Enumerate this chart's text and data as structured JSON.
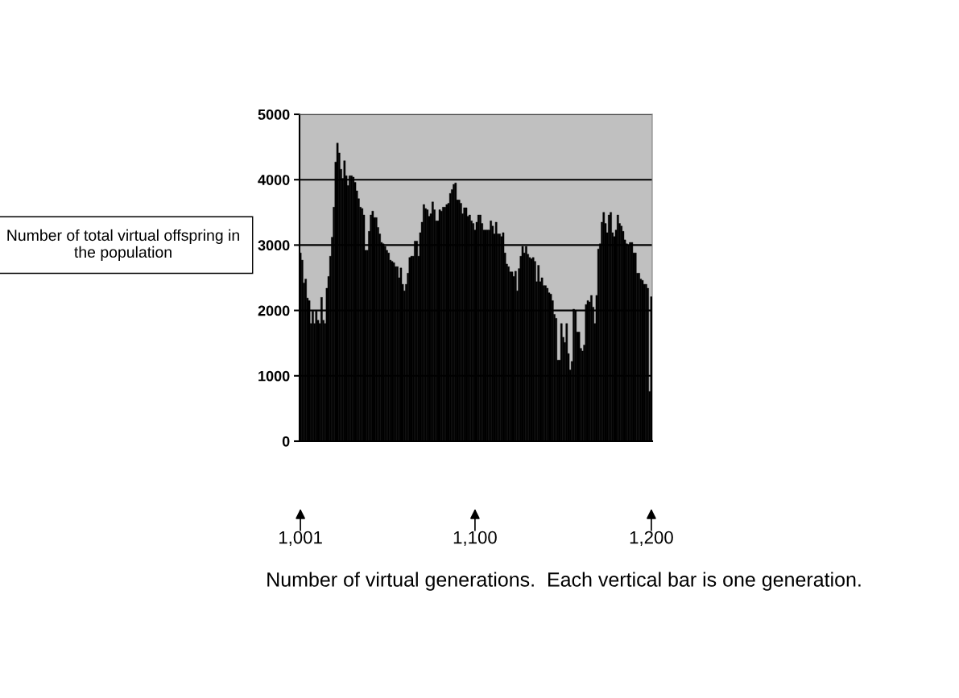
{
  "chart_data": {
    "type": "bar",
    "xlabel": "Number of virtual generations.  Each vertical bar is one generation.",
    "ylabel": "Number of total virtual offspring in the population",
    "x": [
      1001,
      1002,
      1003,
      1004,
      1005,
      1006,
      1007,
      1008,
      1009,
      1010,
      1011,
      1012,
      1013,
      1014,
      1015,
      1016,
      1017,
      1018,
      1019,
      1020,
      1021,
      1022,
      1023,
      1024,
      1025,
      1026,
      1027,
      1028,
      1029,
      1030,
      1031,
      1032,
      1033,
      1034,
      1035,
      1036,
      1037,
      1038,
      1039,
      1040,
      1041,
      1042,
      1043,
      1044,
      1045,
      1046,
      1047,
      1048,
      1049,
      1050,
      1051,
      1052,
      1053,
      1054,
      1055,
      1056,
      1057,
      1058,
      1059,
      1060,
      1061,
      1062,
      1063,
      1064,
      1065,
      1066,
      1067,
      1068,
      1069,
      1070,
      1071,
      1072,
      1073,
      1074,
      1075,
      1076,
      1077,
      1078,
      1079,
      1080,
      1081,
      1082,
      1083,
      1084,
      1085,
      1086,
      1087,
      1088,
      1089,
      1090,
      1091,
      1092,
      1093,
      1094,
      1095,
      1096,
      1097,
      1098,
      1099,
      1100,
      1101,
      1102,
      1103,
      1104,
      1105,
      1106,
      1107,
      1108,
      1109,
      1110,
      1111,
      1112,
      1113,
      1114,
      1115,
      1116,
      1117,
      1118,
      1119,
      1120,
      1121,
      1122,
      1123,
      1124,
      1125,
      1126,
      1127,
      1128,
      1129,
      1130,
      1131,
      1132,
      1133,
      1134,
      1135,
      1136,
      1137,
      1138,
      1139,
      1140,
      1141,
      1142,
      1143,
      1144,
      1145,
      1146,
      1147,
      1148,
      1149,
      1150,
      1151,
      1152,
      1153,
      1154,
      1155,
      1156,
      1157,
      1158,
      1159,
      1160,
      1161,
      1162,
      1163,
      1164,
      1165,
      1166,
      1167,
      1168,
      1169,
      1170,
      1171,
      1172,
      1173,
      1174,
      1175,
      1176,
      1177,
      1178,
      1179,
      1180,
      1181,
      1182,
      1183,
      1184,
      1185,
      1186,
      1187,
      1188,
      1189,
      1190,
      1191,
      1192,
      1193,
      1194,
      1195,
      1196,
      1197,
      1198,
      1199,
      1200
    ],
    "values": [
      2880,
      2770,
      2420,
      2480,
      2190,
      2150,
      1800,
      1990,
      1800,
      1990,
      1850,
      1800,
      2200,
      1850,
      1800,
      2340,
      2520,
      2830,
      3120,
      3580,
      4270,
      4560,
      4410,
      4160,
      4020,
      4290,
      4060,
      3910,
      4060,
      4060,
      4040,
      3960,
      3830,
      3710,
      3580,
      3560,
      3460,
      2920,
      2920,
      3210,
      3460,
      3520,
      3420,
      3420,
      3270,
      3170,
      3040,
      3020,
      2980,
      2920,
      2880,
      2770,
      2750,
      2730,
      2670,
      2670,
      2500,
      2650,
      2400,
      2300,
      2400,
      2570,
      2810,
      2830,
      2830,
      3060,
      3060,
      2830,
      3190,
      3350,
      3620,
      3560,
      3540,
      3440,
      3480,
      3660,
      3540,
      3370,
      3370,
      3540,
      3520,
      3580,
      3580,
      3620,
      3640,
      3790,
      3850,
      3930,
      3950,
      3690,
      3690,
      3640,
      3480,
      3570,
      3570,
      3440,
      3460,
      3370,
      3330,
      3230,
      3350,
      3460,
      3460,
      3330,
      3230,
      3230,
      3230,
      3230,
      3370,
      3290,
      3170,
      3350,
      3170,
      3170,
      3130,
      3190,
      2880,
      2710,
      2670,
      2590,
      2590,
      2520,
      2600,
      2300,
      2640,
      2830,
      2980,
      2880,
      2980,
      2860,
      2810,
      2790,
      2810,
      2750,
      2440,
      2690,
      2440,
      2500,
      2380,
      2380,
      2340,
      2270,
      2250,
      2150,
      1940,
      1880,
      1240,
      1240,
      1800,
      1590,
      1510,
      1800,
      1340,
      1090,
      1220,
      2020,
      2000,
      1670,
      1670,
      1420,
      1380,
      1470,
      2090,
      2150,
      2130,
      2230,
      2050,
      1800,
      2230,
      2940,
      3020,
      3350,
      3500,
      3330,
      3190,
      3460,
      3500,
      3190,
      3130,
      3230,
      3460,
      3330,
      3290,
      3210,
      3080,
      3020,
      3000,
      3040,
      3040,
      2880,
      2880,
      2570,
      2570,
      2480,
      2460,
      2400,
      2400,
      2340,
      760,
      2210
    ],
    "color": "#000000",
    "xlim": [
      1000.5,
      1200.5
    ],
    "xticks": [
      {
        "value": 1001,
        "label": "1,001"
      },
      {
        "value": 1100,
        "label": "1,100"
      },
      {
        "value": 1200,
        "label": "1,200"
      }
    ],
    "ylim": [
      0,
      5000
    ],
    "yticks": [
      0,
      1000,
      2000,
      3000,
      4000,
      5000
    ],
    "grid": "y",
    "legend": false
  }
}
